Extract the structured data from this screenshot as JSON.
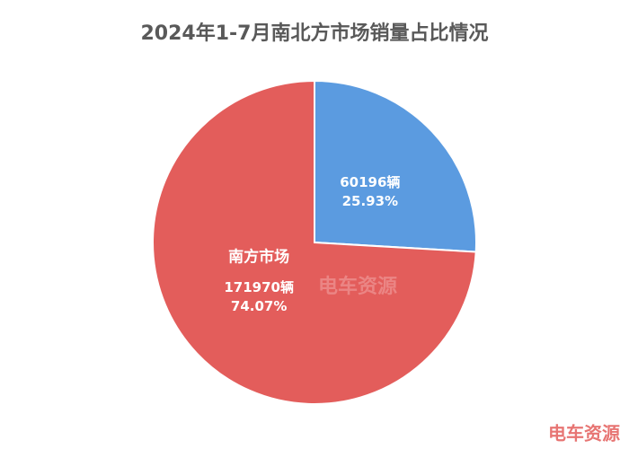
{
  "chart_data": {
    "type": "pie",
    "title": "2024年1-7月南北方市场销量占比情况",
    "categories": [
      null,
      "南方市场"
    ],
    "values": [
      25.93,
      74.07
    ],
    "value_labels": [
      "25.93%",
      "74.07%"
    ],
    "counts": [
      60196,
      171970
    ],
    "count_labels": [
      "60196辆",
      "171970辆"
    ],
    "colors": [
      "#5b9be0",
      "#e35d5b"
    ],
    "watermark": "电车资源"
  }
}
